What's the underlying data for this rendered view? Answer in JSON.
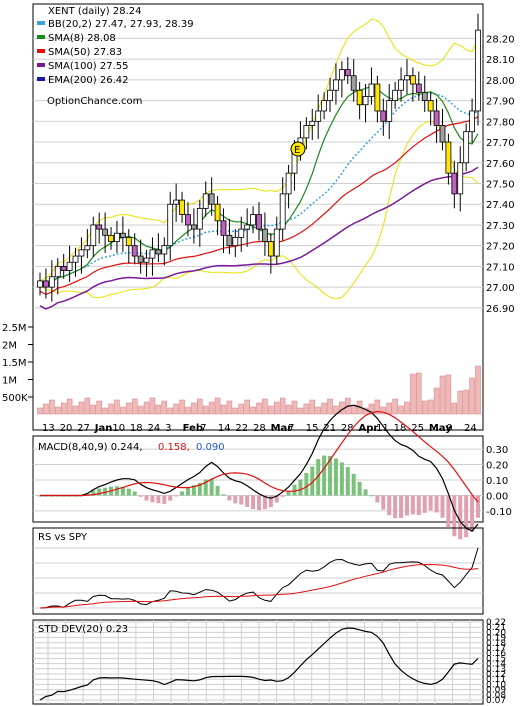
{
  "chart_data": [
    {
      "type": "candlestick",
      "title": "XENT (daily) 28.24",
      "watermark": "OptionChance.com",
      "legend": [
        {
          "label": "BB(20,2) 27.47, 27.93, 28.39",
          "color": "#3aa0e0"
        },
        {
          "label": "SMA(8) 28.08",
          "color": "#1a8a1a"
        },
        {
          "label": "SMA(50) 27.83",
          "color": "#e01010"
        },
        {
          "label": "SMA(100) 27.55",
          "color": "#7a1a9a"
        },
        {
          "label": "EMA(200) 26.42",
          "color": "#1a1aa0"
        }
      ],
      "y_ticks": [
        "28.20",
        "28.10",
        "28.00",
        "27.90",
        "27.80",
        "27.70",
        "27.60",
        "27.50",
        "27.40",
        "27.30",
        "27.20",
        "27.10",
        "27.00",
        "26.90"
      ],
      "ylim": [
        26.88,
        28.26
      ],
      "x_ticks": [
        "13",
        "20",
        "27",
        "Jan",
        "10",
        "18",
        "24",
        "3",
        "Feb",
        "7",
        "14",
        "22",
        "28",
        "Mar",
        "7",
        "15",
        "21",
        "28",
        "Apr",
        "11",
        "18",
        "25",
        "May",
        "9",
        "24"
      ],
      "annotation": "E",
      "closes": [
        27.03,
        27.0,
        27.05,
        27.1,
        27.08,
        27.12,
        27.15,
        27.18,
        27.2,
        27.3,
        27.28,
        27.25,
        27.22,
        27.26,
        27.24,
        27.2,
        27.15,
        27.12,
        27.14,
        27.18,
        27.16,
        27.2,
        27.4,
        27.42,
        27.35,
        27.3,
        27.28,
        27.38,
        27.45,
        27.4,
        27.32,
        27.25,
        27.2,
        27.24,
        27.28,
        27.3,
        27.35,
        27.28,
        27.22,
        27.15,
        27.28,
        27.45,
        27.55,
        27.65,
        27.72,
        27.78,
        27.8,
        27.85,
        27.9,
        27.95,
        28.0,
        28.05,
        28.02,
        27.95,
        27.88,
        27.92,
        27.98,
        27.85,
        27.8,
        27.9,
        27.95,
        28.0,
        28.02,
        27.98,
        27.94,
        27.9,
        27.85,
        27.78,
        27.7,
        27.55,
        27.45,
        27.6,
        27.75,
        27.85,
        28.24
      ]
    },
    {
      "type": "bar",
      "title": "Volume",
      "y_ticks": [
        "2.5M",
        "2M",
        "1.5M",
        "1M",
        "500K"
      ]
    },
    {
      "type": "line",
      "title": "MACD(8,40,9) 0.244,",
      "values_label": [
        "0.158,",
        "0.090"
      ],
      "y_ticks": [
        "0.30",
        "0.20",
        "0.10",
        "0.00",
        "-0.10"
      ]
    },
    {
      "type": "line",
      "title": "RS vs SPY"
    },
    {
      "type": "line",
      "title": "STD DEV(20) 0.23",
      "y_ticks": [
        "0.22",
        "0.21",
        "0.20",
        "0.19",
        "0.18",
        "0.17",
        "0.16",
        "0.15",
        "0.14",
        "0.13",
        "0.12",
        "0.11",
        "0.10",
        "0.09",
        "0.08",
        "0.07"
      ]
    }
  ]
}
